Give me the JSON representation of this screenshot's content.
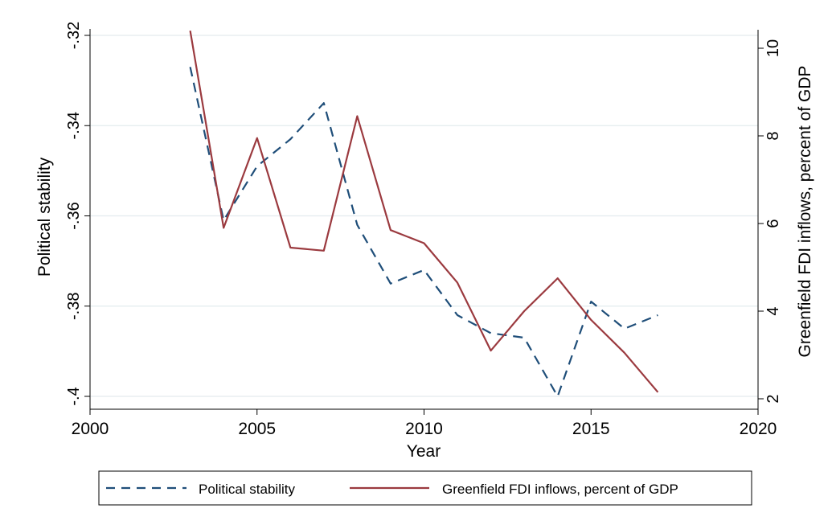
{
  "chart_data": {
    "type": "line",
    "xlabel": "Year",
    "ylabel_left": "Political stability",
    "ylabel_right": "Greenfield FDI inflows, percent of GDP",
    "xlim": [
      2000,
      2020
    ],
    "ylim_left": [
      -0.4,
      -0.32
    ],
    "ylim_right": [
      2,
      10.4
    ],
    "x_ticks": [
      2000,
      2005,
      2010,
      2015,
      2020
    ],
    "x_tick_labels": [
      "2000",
      "2005",
      "2010",
      "2015",
      "2020"
    ],
    "y_left_ticks": [
      -0.32,
      -0.34,
      -0.36,
      -0.38,
      -0.4
    ],
    "y_left_tick_labels": [
      "-.32",
      "-.34",
      "-.36",
      "-.38",
      "-.4"
    ],
    "y_right_ticks": [
      10,
      8,
      6,
      4,
      2
    ],
    "y_right_tick_labels": [
      "10",
      "8",
      "6",
      "4",
      "2"
    ],
    "grid": true,
    "legend_position": "bottom",
    "series": [
      {
        "name": "Political stability",
        "axis": "left",
        "color": "#1f4e79",
        "style": "dashed",
        "x": [
          2003,
          2004,
          2005,
          2006,
          2007,
          2008,
          2009,
          2010,
          2011,
          2012,
          2013,
          2014,
          2015,
          2016,
          2017
        ],
        "values": [
          -0.327,
          -0.361,
          -0.349,
          -0.343,
          -0.335,
          -0.362,
          -0.375,
          -0.372,
          -0.382,
          -0.386,
          -0.387,
          -0.4,
          -0.379,
          -0.385,
          -0.382
        ]
      },
      {
        "name": "Greenfield FDI inflows, percent of GDP",
        "axis": "right",
        "color": "#9b3a3f",
        "style": "solid",
        "x": [
          2003,
          2004,
          2005,
          2006,
          2007,
          2008,
          2009,
          2010,
          2011,
          2012,
          2013,
          2014,
          2015,
          2016,
          2017
        ],
        "values": [
          10.4,
          5.9,
          7.95,
          5.45,
          5.38,
          8.45,
          5.85,
          5.55,
          4.65,
          3.1,
          4.0,
          4.75,
          3.8,
          3.05,
          2.15
        ]
      }
    ]
  }
}
